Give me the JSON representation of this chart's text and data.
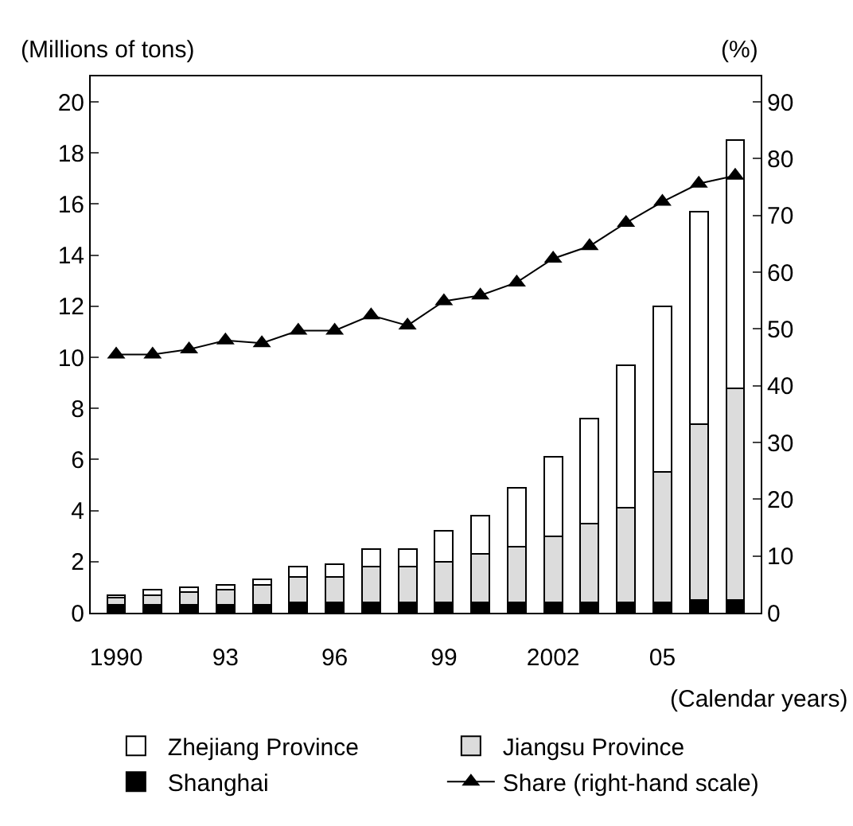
{
  "chart_data": {
    "type": "bar",
    "stacked": true,
    "ylabel": "(Millions of tons)",
    "y2label": "(%)",
    "xlabel": "(Calendar years)",
    "categories": [
      "1990",
      null,
      null,
      "93",
      null,
      null,
      "96",
      null,
      null,
      "99",
      null,
      null,
      "2002",
      null,
      null,
      "05",
      null,
      null
    ],
    "series": [
      {
        "name": "Shanghai",
        "color": "#000000",
        "values": [
          0.3,
          0.3,
          0.3,
          0.3,
          0.3,
          0.4,
          0.4,
          0.4,
          0.4,
          0.4,
          0.4,
          0.4,
          0.4,
          0.4,
          0.4,
          0.4,
          0.5,
          0.5
        ]
      },
      {
        "name": "Jiangsu Province",
        "color": "#dcdcdc",
        "values": [
          0.3,
          0.4,
          0.5,
          0.6,
          0.8,
          1.0,
          1.0,
          1.4,
          1.4,
          1.6,
          1.9,
          2.2,
          2.6,
          3.1,
          3.7,
          5.1,
          6.9,
          8.3
        ]
      },
      {
        "name": "Zhejiang Province",
        "color": "#ffffff",
        "values": [
          0.1,
          0.2,
          0.2,
          0.2,
          0.2,
          0.4,
          0.5,
          0.7,
          0.7,
          1.2,
          1.5,
          2.3,
          3.1,
          4.1,
          5.6,
          6.5,
          8.3,
          9.7
        ]
      },
      {
        "name": "Share (right-hand scale)",
        "type": "line",
        "axis": "y2",
        "color": "#000000",
        "values": [
          45.5,
          45.5,
          46.4,
          48,
          47.5,
          49.7,
          49.7,
          52.4,
          50.6,
          54.9,
          55.9,
          58.2,
          62.4,
          64.6,
          68.7,
          72.4,
          75.6,
          77.0
        ]
      }
    ],
    "marker": "triangle",
    "line_style": "solid",
    "ylim": [
      0,
      21
    ],
    "yticks": [
      0,
      2,
      4,
      6,
      8,
      10,
      12,
      14,
      16,
      18,
      20
    ],
    "y2lim": [
      0,
      94.5
    ],
    "y2ticks": [
      0,
      10,
      20,
      30,
      40,
      50,
      60,
      70,
      80,
      90
    ],
    "grid": false,
    "legend": "bottom"
  }
}
